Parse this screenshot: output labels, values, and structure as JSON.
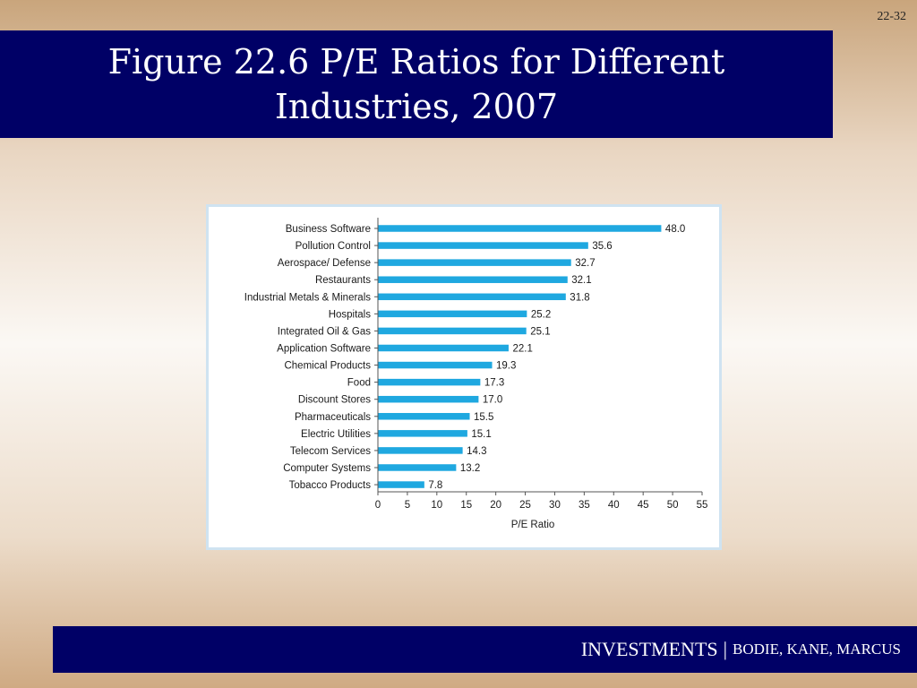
{
  "slide_number": "22-32",
  "header": {
    "title": "Figure 22.6 P/E Ratios for Different Industries, 2007"
  },
  "footer": {
    "main": "INVESTMENTS",
    "separator": "|",
    "authors": "BODIE, KANE, MARCUS"
  },
  "chart_data": {
    "type": "bar",
    "orientation": "horizontal",
    "title": "",
    "xlabel": "P/E Ratio",
    "ylabel": "",
    "xlim": [
      0,
      55
    ],
    "xticks": [
      0,
      5,
      10,
      15,
      20,
      25,
      30,
      35,
      40,
      45,
      50,
      55
    ],
    "grid": false,
    "bar_color": "#1fa8e0",
    "categories": [
      "Business Software",
      "Pollution Control",
      "Aerospace/ Defense",
      "Restaurants",
      "Industrial Metals & Minerals",
      "Hospitals",
      "Integrated Oil & Gas",
      "Application Software",
      "Chemical Products",
      "Food",
      "Discount Stores",
      "Pharmaceuticals",
      "Electric Utilities",
      "Telecom Services",
      "Computer Systems",
      "Tobacco Products"
    ],
    "values": [
      48.0,
      35.6,
      32.7,
      32.1,
      31.8,
      25.2,
      25.1,
      22.1,
      19.3,
      17.3,
      17.0,
      15.5,
      15.1,
      14.3,
      13.2,
      7.8
    ],
    "value_labels": [
      "48.0",
      "35.6",
      "32.7",
      "32.1",
      "31.8",
      "25.2",
      "25.1",
      "22.1",
      "19.3",
      "17.3",
      "17.0",
      "15.5",
      "15.1",
      "14.3",
      "13.2",
      "7.8"
    ]
  }
}
